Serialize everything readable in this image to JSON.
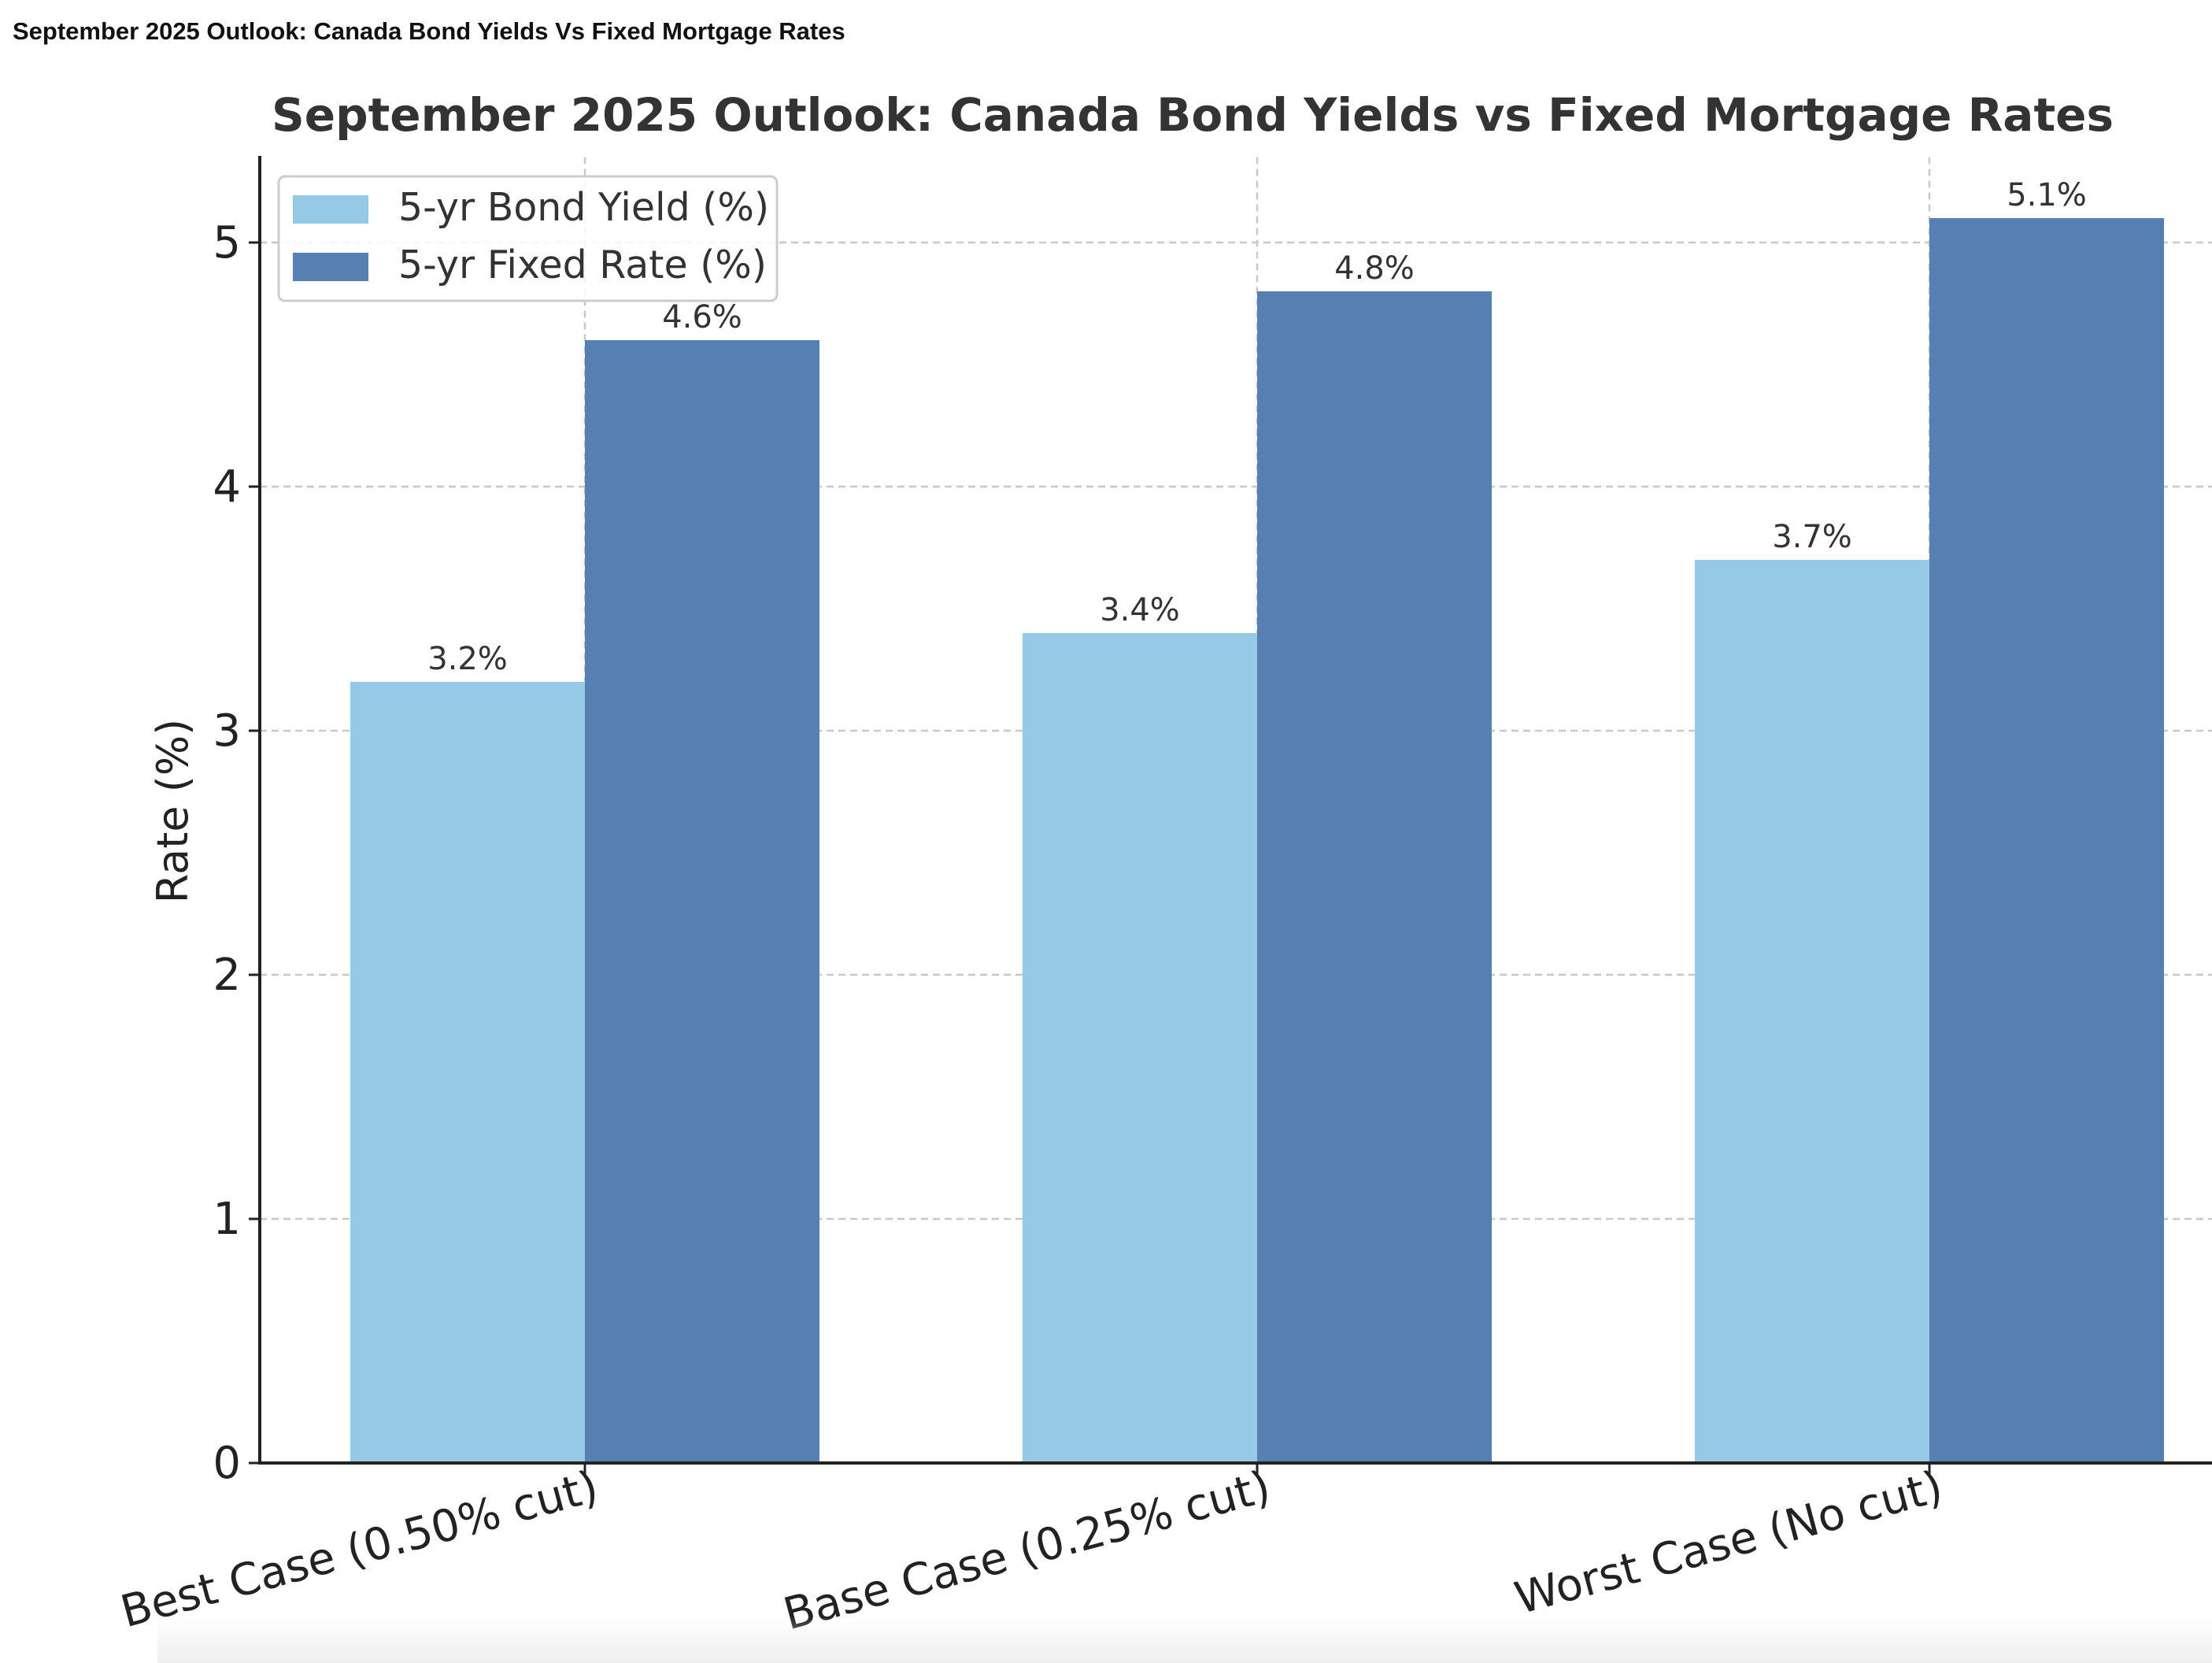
{
  "page": {
    "caption": "September 2025 Outlook: Canada Bond Yields Vs Fixed Mortgage Rates"
  },
  "chart_data": {
    "type": "bar",
    "title": "September 2025 Outlook: Canada Bond Yields vs Fixed Mortgage Rates",
    "xlabel": "",
    "ylabel": "Rate (%)",
    "categories": [
      "Best Case (0.50% cut)",
      "Base Case (0.25% cut)",
      "Worst Case (No cut)"
    ],
    "series": [
      {
        "name": "5-yr Bond Yield (%)",
        "values": [
          3.2,
          3.4,
          3.7
        ],
        "color": "#96c9e6",
        "labels": [
          "3.2%",
          "3.4%",
          "3.7%"
        ]
      },
      {
        "name": "5-yr Fixed Rate (%)",
        "values": [
          4.6,
          4.8,
          5.1
        ],
        "color": "#5680b1",
        "labels": [
          "4.6%",
          "4.8%",
          "5.1%"
        ]
      }
    ],
    "ylim": [
      0,
      5.35
    ],
    "yticks": [
      0,
      1,
      2,
      3,
      4,
      5
    ],
    "grid": true,
    "legend_position": "top-left"
  }
}
